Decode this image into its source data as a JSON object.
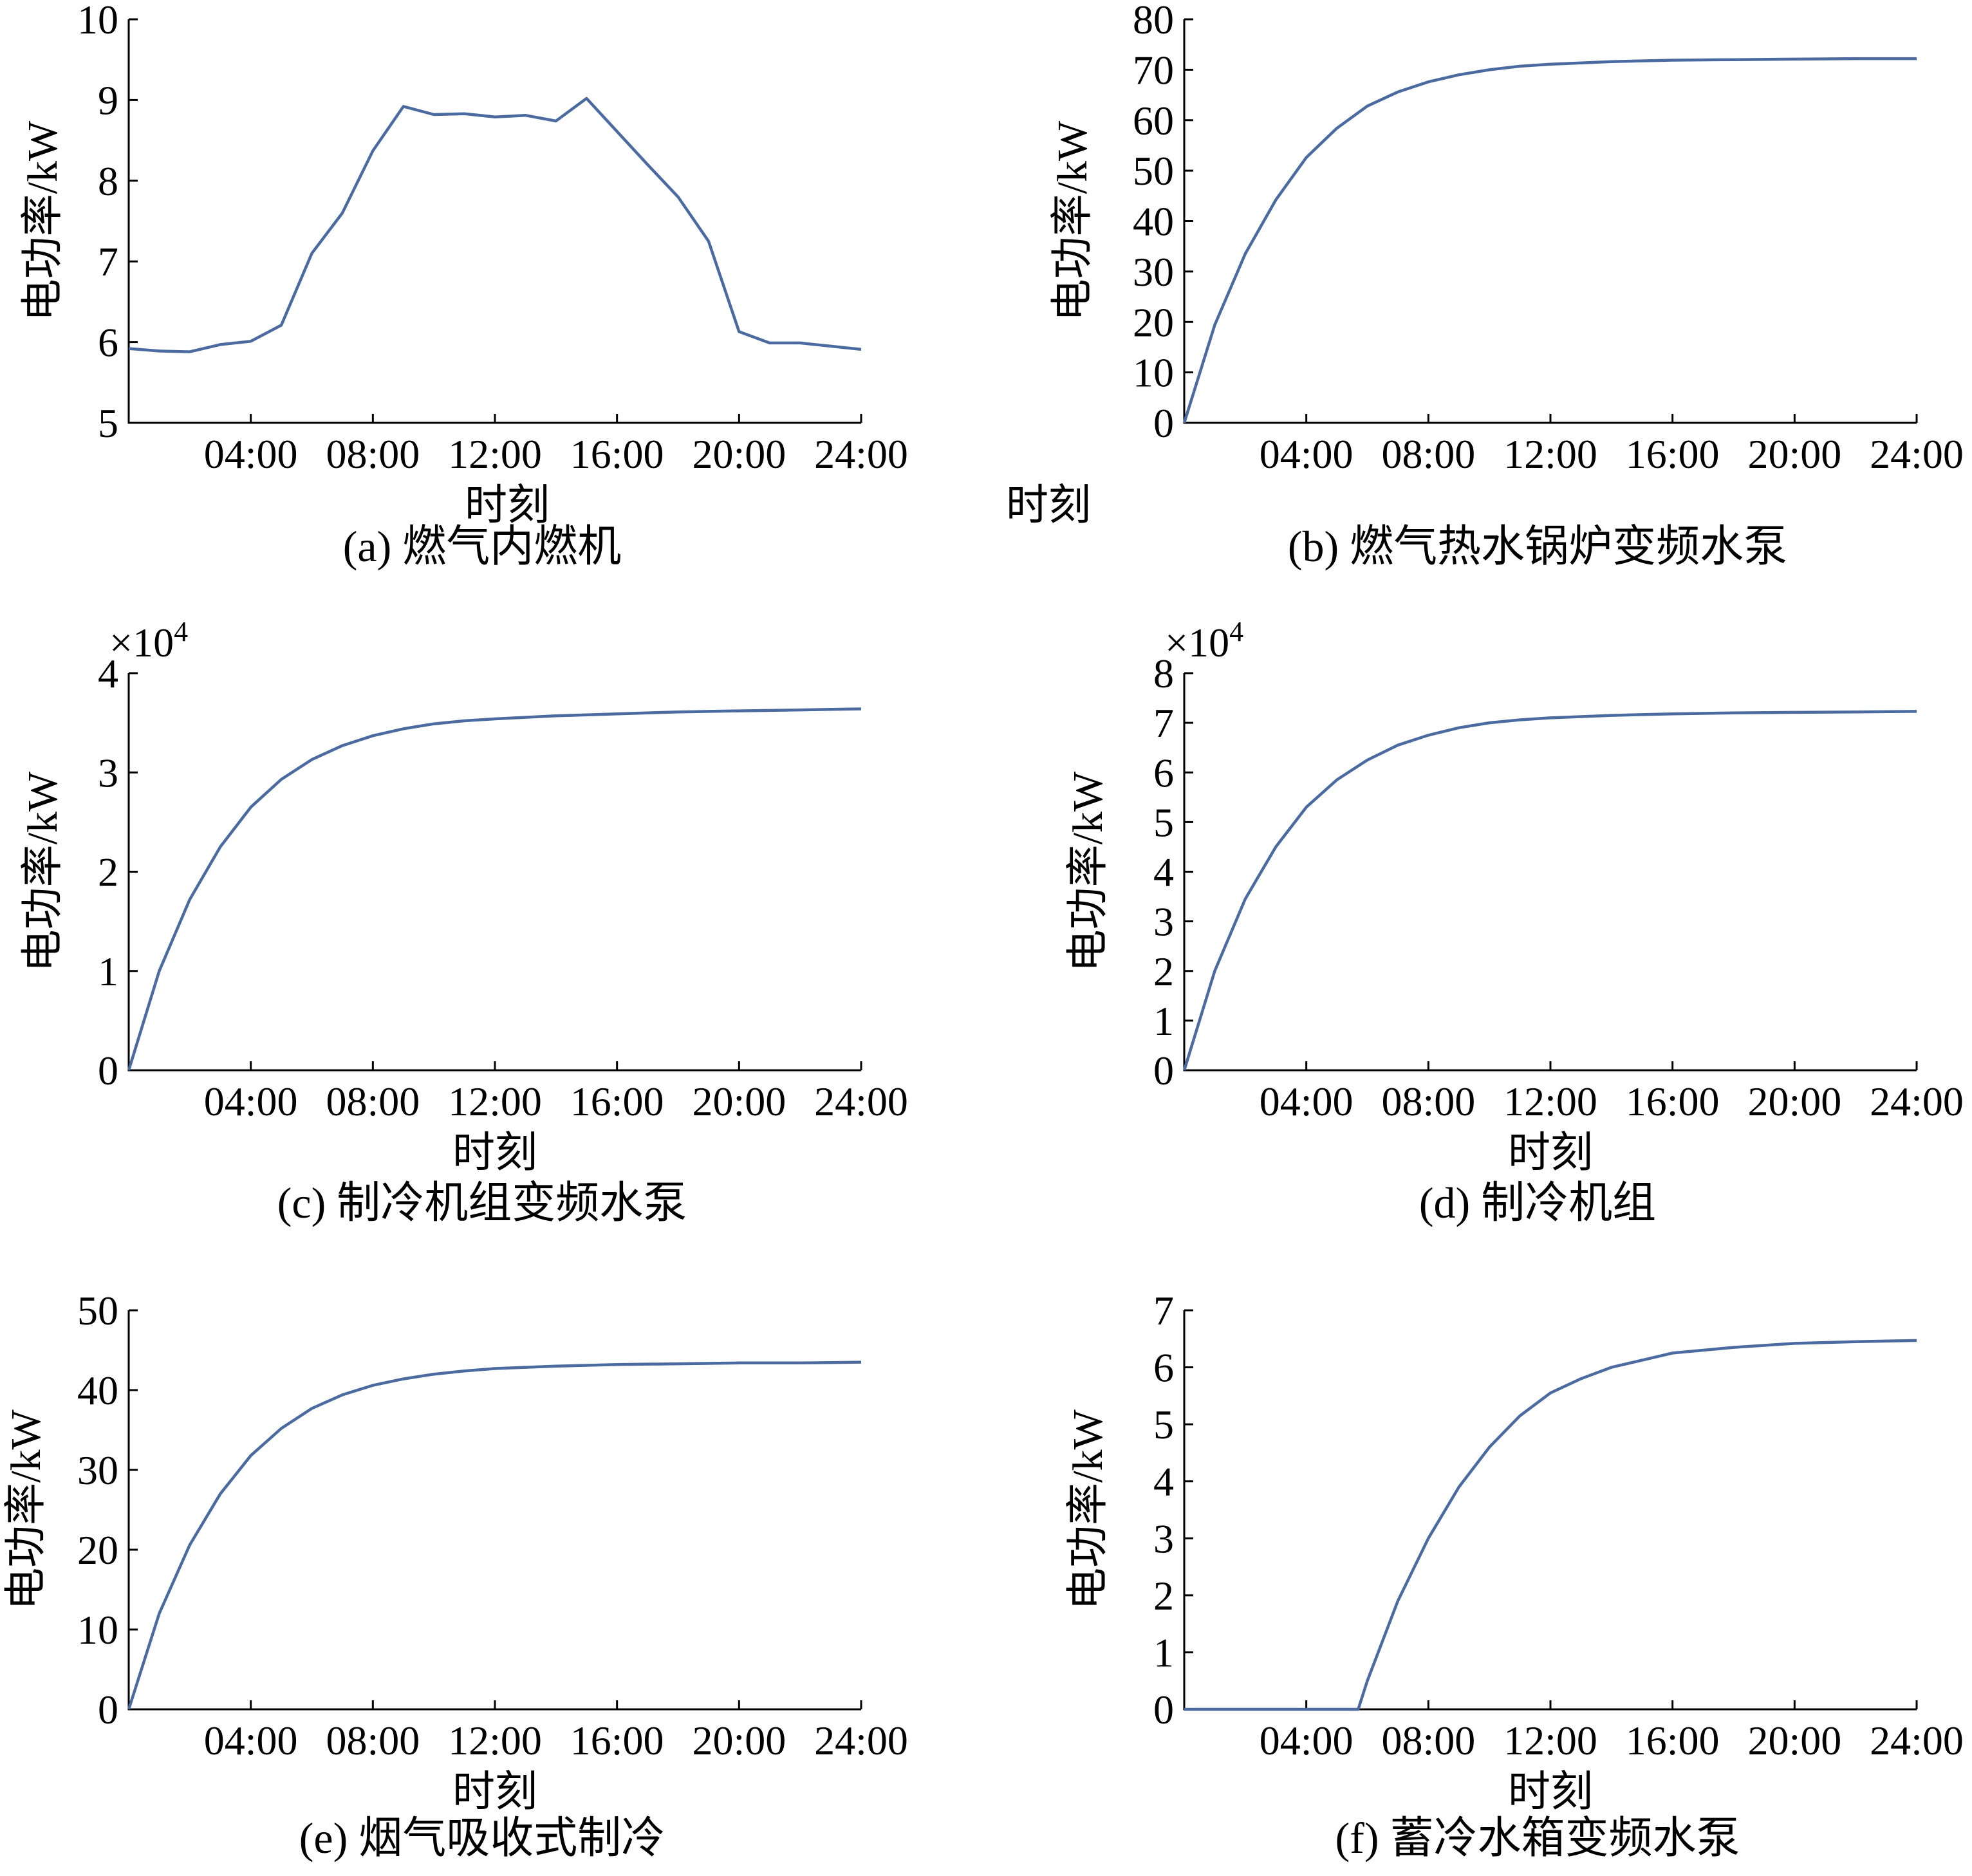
{
  "chart_data": [
    {
      "id": "a",
      "type": "line",
      "caption": "(a) 燃气内燃机",
      "xlabel": "时刻",
      "ylabel": "电功率/kW",
      "x_tick_labels": [
        "04:00",
        "08:00",
        "12:00",
        "16:00",
        "20:00",
        "24:00"
      ],
      "x_ticks": [
        4,
        8,
        12,
        16,
        20,
        24
      ],
      "xlim": [
        0,
        24
      ],
      "y_ticks": [
        5,
        6,
        7,
        8,
        9,
        10
      ],
      "ylim": [
        5,
        10
      ],
      "y_multiplier": "",
      "series": [
        {
          "x": [
            0,
            1,
            2,
            3,
            4,
            5,
            6,
            7,
            8,
            9,
            10,
            11,
            12,
            13,
            14,
            15,
            16,
            17,
            18,
            19,
            20,
            21,
            22,
            23,
            24
          ],
          "y": [
            5.92,
            5.89,
            5.88,
            5.97,
            6.01,
            6.21,
            7.1,
            7.6,
            8.37,
            8.92,
            8.82,
            8.83,
            8.79,
            8.81,
            8.74,
            9.02,
            8.61,
            8.2,
            7.8,
            7.25,
            6.13,
            5.99,
            5.99,
            5.95,
            5.91
          ]
        }
      ]
    },
    {
      "id": "b",
      "type": "line",
      "caption": "(b) 燃气热水锅炉变频水泵",
      "xlabel": "时刻",
      "ylabel": "电功率/kW",
      "x_tick_labels": [
        "04:00",
        "08:00",
        "12:00",
        "16:00",
        "20:00",
        "24:00"
      ],
      "x_ticks": [
        4,
        8,
        12,
        16,
        20,
        24
      ],
      "xlim": [
        0,
        24
      ],
      "y_ticks": [
        0,
        10,
        20,
        30,
        40,
        50,
        60,
        70,
        80
      ],
      "ylim": [
        0,
        80
      ],
      "y_multiplier": "",
      "series": [
        {
          "x": [
            0,
            1,
            2,
            3,
            4,
            5,
            6,
            7,
            8,
            9,
            10,
            11,
            12,
            14,
            16,
            18,
            20,
            22,
            24
          ],
          "y": [
            0,
            19.4,
            33.5,
            44.2,
            52.6,
            58.4,
            62.8,
            65.6,
            67.6,
            69.0,
            70.0,
            70.7,
            71.1,
            71.6,
            71.9,
            72.0,
            72.1,
            72.2,
            72.2
          ]
        }
      ]
    },
    {
      "id": "c",
      "type": "line",
      "caption": "(c) 制冷机组变频水泵",
      "xlabel": "时刻",
      "ylabel": "电功率/kW",
      "x_tick_labels": [
        "04:00",
        "08:00",
        "12:00",
        "16:00",
        "20:00",
        "24:00"
      ],
      "x_ticks": [
        4,
        8,
        12,
        16,
        20,
        24
      ],
      "xlim": [
        0,
        24
      ],
      "y_ticks": [
        0,
        1,
        2,
        3,
        4
      ],
      "ylim": [
        0,
        4
      ],
      "y_multiplier": "×10",
      "y_multiplier_exp": "4",
      "series": [
        {
          "x": [
            0,
            1,
            2,
            3,
            4,
            5,
            6,
            7,
            8,
            9,
            10,
            11,
            12,
            14,
            16,
            18,
            20,
            22,
            24
          ],
          "y": [
            0,
            1.0,
            1.72,
            2.25,
            2.65,
            2.93,
            3.13,
            3.27,
            3.37,
            3.44,
            3.49,
            3.52,
            3.54,
            3.57,
            3.59,
            3.61,
            3.62,
            3.63,
            3.64
          ]
        }
      ]
    },
    {
      "id": "d",
      "type": "line",
      "caption": "(d) 制冷机组",
      "xlabel": "时刻",
      "ylabel": "电功率/kW",
      "x_tick_labels": [
        "04:00",
        "08:00",
        "12:00",
        "16:00",
        "20:00",
        "24:00"
      ],
      "x_ticks": [
        4,
        8,
        12,
        16,
        20,
        24
      ],
      "xlim": [
        0,
        24
      ],
      "y_ticks": [
        0,
        1,
        2,
        3,
        4,
        5,
        6,
        7,
        8
      ],
      "ylim": [
        0,
        8
      ],
      "y_multiplier": "×10",
      "y_multiplier_exp": "4",
      "series": [
        {
          "x": [
            0,
            1,
            2,
            3,
            4,
            5,
            6,
            7,
            8,
            9,
            10,
            11,
            12,
            14,
            16,
            18,
            20,
            22,
            24
          ],
          "y": [
            0,
            2.0,
            3.45,
            4.5,
            5.3,
            5.85,
            6.25,
            6.55,
            6.75,
            6.9,
            7.0,
            7.06,
            7.1,
            7.15,
            7.18,
            7.2,
            7.21,
            7.22,
            7.23
          ]
        }
      ]
    },
    {
      "id": "e",
      "type": "line",
      "caption": "(e) 烟气吸收式制冷",
      "xlabel": "时刻",
      "ylabel": "电功率/kW",
      "x_tick_labels": [
        "04:00",
        "08:00",
        "12:00",
        "16:00",
        "20:00",
        "24:00"
      ],
      "x_ticks": [
        4,
        8,
        12,
        16,
        20,
        24
      ],
      "xlim": [
        0,
        24
      ],
      "y_ticks": [
        0,
        10,
        20,
        30,
        40,
        50
      ],
      "ylim": [
        0,
        50
      ],
      "y_multiplier": "",
      "series": [
        {
          "x": [
            0,
            1,
            2,
            3,
            4,
            5,
            6,
            7,
            8,
            9,
            10,
            11,
            12,
            14,
            16,
            18,
            20,
            22,
            24
          ],
          "y": [
            0,
            12.0,
            20.6,
            27.0,
            31.8,
            35.2,
            37.7,
            39.4,
            40.6,
            41.4,
            42.0,
            42.4,
            42.7,
            43.0,
            43.2,
            43.3,
            43.4,
            43.4,
            43.5
          ]
        }
      ]
    },
    {
      "id": "f",
      "type": "line",
      "caption": "(f) 蓄冷水箱变频水泵",
      "xlabel": "时刻",
      "ylabel": "电功率/kW",
      "x_tick_labels": [
        "04:00",
        "08:00",
        "12:00",
        "16:00",
        "20:00",
        "24:00"
      ],
      "x_ticks": [
        4,
        8,
        12,
        16,
        20,
        24
      ],
      "xlim": [
        0,
        24
      ],
      "y_ticks": [
        0,
        1,
        2,
        3,
        4,
        5,
        6,
        7
      ],
      "ylim": [
        0,
        7
      ],
      "y_multiplier": "",
      "series": [
        {
          "x": [
            0,
            1,
            2,
            3,
            4,
            5,
            5.7,
            6,
            7,
            8,
            9,
            10,
            11,
            12,
            13,
            14,
            16,
            18,
            20,
            22,
            24
          ],
          "y": [
            0,
            0,
            0,
            0,
            0,
            0,
            0,
            0.5,
            1.9,
            3.0,
            3.9,
            4.6,
            5.15,
            5.55,
            5.8,
            6.0,
            6.25,
            6.35,
            6.42,
            6.45,
            6.47
          ]
        }
      ]
    }
  ]
}
